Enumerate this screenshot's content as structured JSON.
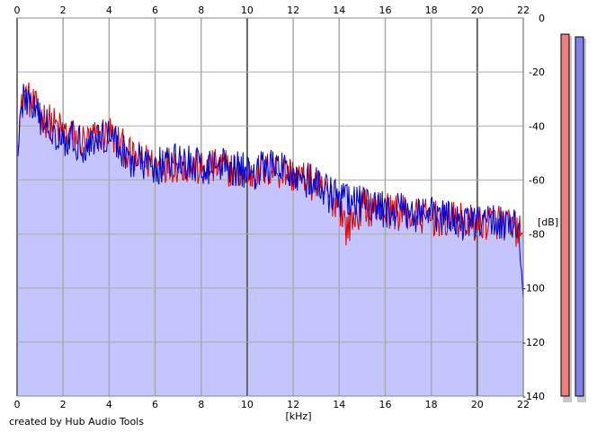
{
  "chart_data": {
    "type": "area",
    "xlabel": "[kHz]",
    "ylabel": "[dB]",
    "xlim": [
      0,
      22
    ],
    "ylim": [
      -140,
      0
    ],
    "x_ticks": [
      "0",
      "2",
      "4",
      "6",
      "8",
      "10",
      "12",
      "14",
      "16",
      "18",
      "20",
      "22"
    ],
    "y_ticks": [
      "0",
      "-20",
      "-40",
      "-60",
      "-80",
      "-100",
      "-120",
      "-140"
    ],
    "grid": true,
    "fill_color": "#c4c4ff",
    "series": [
      {
        "color": "#dd0000",
        "x": [
          0,
          0.3,
          1,
          2,
          3,
          4,
          5,
          6,
          7,
          8,
          9,
          10,
          11,
          12,
          13,
          13.5,
          14,
          14.3,
          15,
          16,
          17,
          18,
          19,
          20,
          21,
          22
        ],
        "y": [
          -45,
          -28,
          -36,
          -42,
          -46,
          -42,
          -52,
          -54,
          -54,
          -56,
          -55,
          -58,
          -56,
          -58,
          -62,
          -66,
          -68,
          -78,
          -70,
          -71,
          -73,
          -74,
          -75,
          -76,
          -75,
          -80
        ]
      },
      {
        "color": "#0000cc",
        "x": [
          0,
          0.3,
          1,
          2,
          3,
          4,
          5,
          6,
          7,
          8,
          9,
          10,
          11,
          12,
          13,
          13.5,
          14,
          15,
          16,
          17,
          18,
          19,
          20,
          21,
          21.8,
          22
        ],
        "y": [
          -48,
          -28,
          -38,
          -44,
          -47,
          -43,
          -53,
          -55,
          -53,
          -55,
          -54,
          -57,
          -55,
          -57,
          -62,
          -65,
          -67,
          -69,
          -71,
          -72,
          -73,
          -75,
          -76,
          -75,
          -77,
          -104
        ]
      }
    ]
  },
  "level_meters": [
    {
      "color": "#f08080",
      "value_db": -6
    },
    {
      "color": "#8080f0",
      "value_db": -7
    }
  ],
  "credit": "created by Hub Audio Tools"
}
